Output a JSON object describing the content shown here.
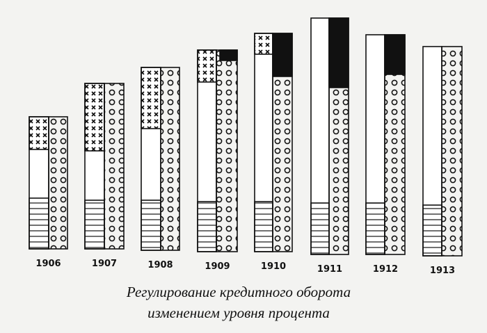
{
  "years": [
    "1906",
    "1907",
    "1908",
    "1909",
    "1910",
    "1911",
    "1912",
    "1913"
  ],
  "caption": [
    "Регулирование кредитного оборота",
    "изменением уровня процента"
  ]
}
